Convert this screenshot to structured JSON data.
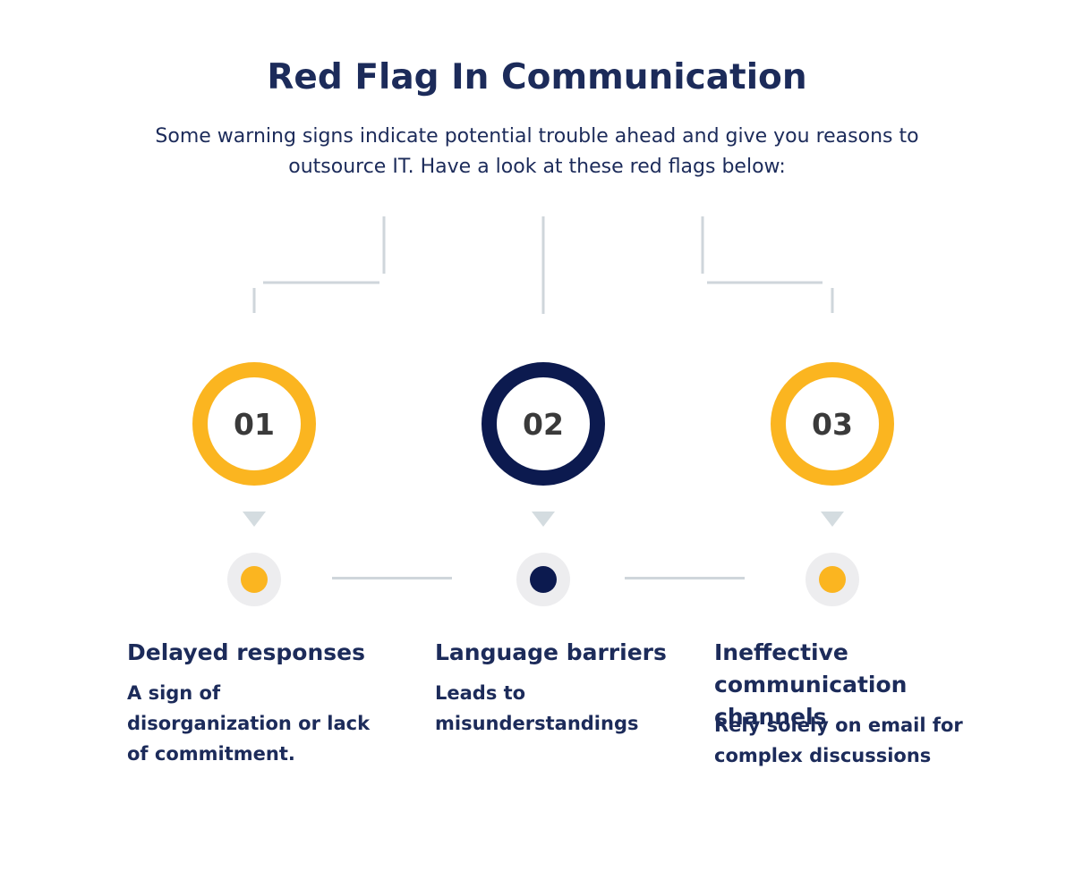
{
  "header": {
    "title": "Red Flag In Communication",
    "subtitle": "Some warning signs indicate potential trouble ahead and give you reasons to outsource IT. Have a look at these red flags below:"
  },
  "colors": {
    "accent_yellow": "#fbb520",
    "accent_navy": "#0c1a4f",
    "text_navy": "#1c2b5a",
    "connector_gray": "#cfd6db",
    "dot_bg_gray": "#ededef",
    "number_text": "#3a3a3a"
  },
  "items": [
    {
      "number": "01",
      "heading": "Delayed responses",
      "description": "A sign of disorganization or lack of commitment.",
      "color": "#fbb520"
    },
    {
      "number": "02",
      "heading": "Language barriers",
      "description": "Leads to misunderstandings",
      "color": "#0c1a4f"
    },
    {
      "number": "03",
      "heading": "Ineffective communication channels",
      "description": "Rely solely on email for complex discussions",
      "color": "#fbb520"
    }
  ]
}
